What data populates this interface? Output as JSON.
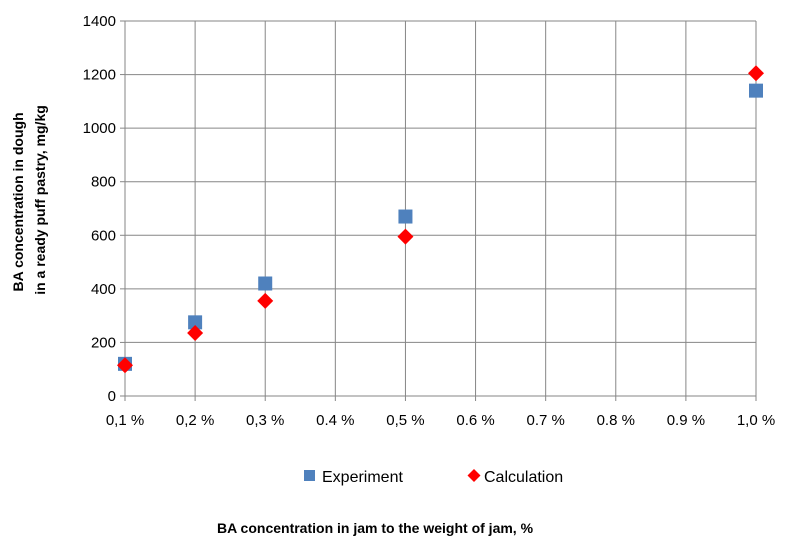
{
  "chart_data": {
    "type": "scatter",
    "ylabel_lines": [
      "BA concentration in dough",
      "in a ready puff pastry, mg/kg"
    ],
    "xlabel": "BA concentration in jam to the weight of jam, %",
    "xlim": [
      0.1,
      1.0
    ],
    "ylim": [
      0,
      1400
    ],
    "y_ticks": [
      0,
      200,
      400,
      600,
      800,
      1000,
      1200,
      1400
    ],
    "x_ticks": [
      {
        "value": 0.1,
        "label": "0,1 %"
      },
      {
        "value": 0.2,
        "label": "0,2 %"
      },
      {
        "value": 0.3,
        "label": "0,3 %"
      },
      {
        "value": 0.4,
        "label": "0.4 %"
      },
      {
        "value": 0.5,
        "label": "0,5 %"
      },
      {
        "value": 0.6,
        "label": "0.6 %"
      },
      {
        "value": 0.7,
        "label": "0.7 %"
      },
      {
        "value": 0.8,
        "label": "0.8 %"
      },
      {
        "value": 0.9,
        "label": "0.9 %"
      },
      {
        "value": 1.0,
        "label": "1,0 %"
      }
    ],
    "grid": true,
    "legend_position": "bottom",
    "series": [
      {
        "name": "Experiment",
        "marker": "square",
        "color": "#4f81bd",
        "points": [
          {
            "x": 0.1,
            "y": 120
          },
          {
            "x": 0.2,
            "y": 275
          },
          {
            "x": 0.3,
            "y": 420
          },
          {
            "x": 0.5,
            "y": 670
          },
          {
            "x": 1.0,
            "y": 1140
          }
        ]
      },
      {
        "name": "Calculation",
        "marker": "diamond",
        "color": "#ff0000",
        "points": [
          {
            "x": 0.1,
            "y": 115
          },
          {
            "x": 0.2,
            "y": 235
          },
          {
            "x": 0.3,
            "y": 355
          },
          {
            "x": 0.5,
            "y": 595
          },
          {
            "x": 1.0,
            "y": 1205
          }
        ]
      }
    ]
  }
}
